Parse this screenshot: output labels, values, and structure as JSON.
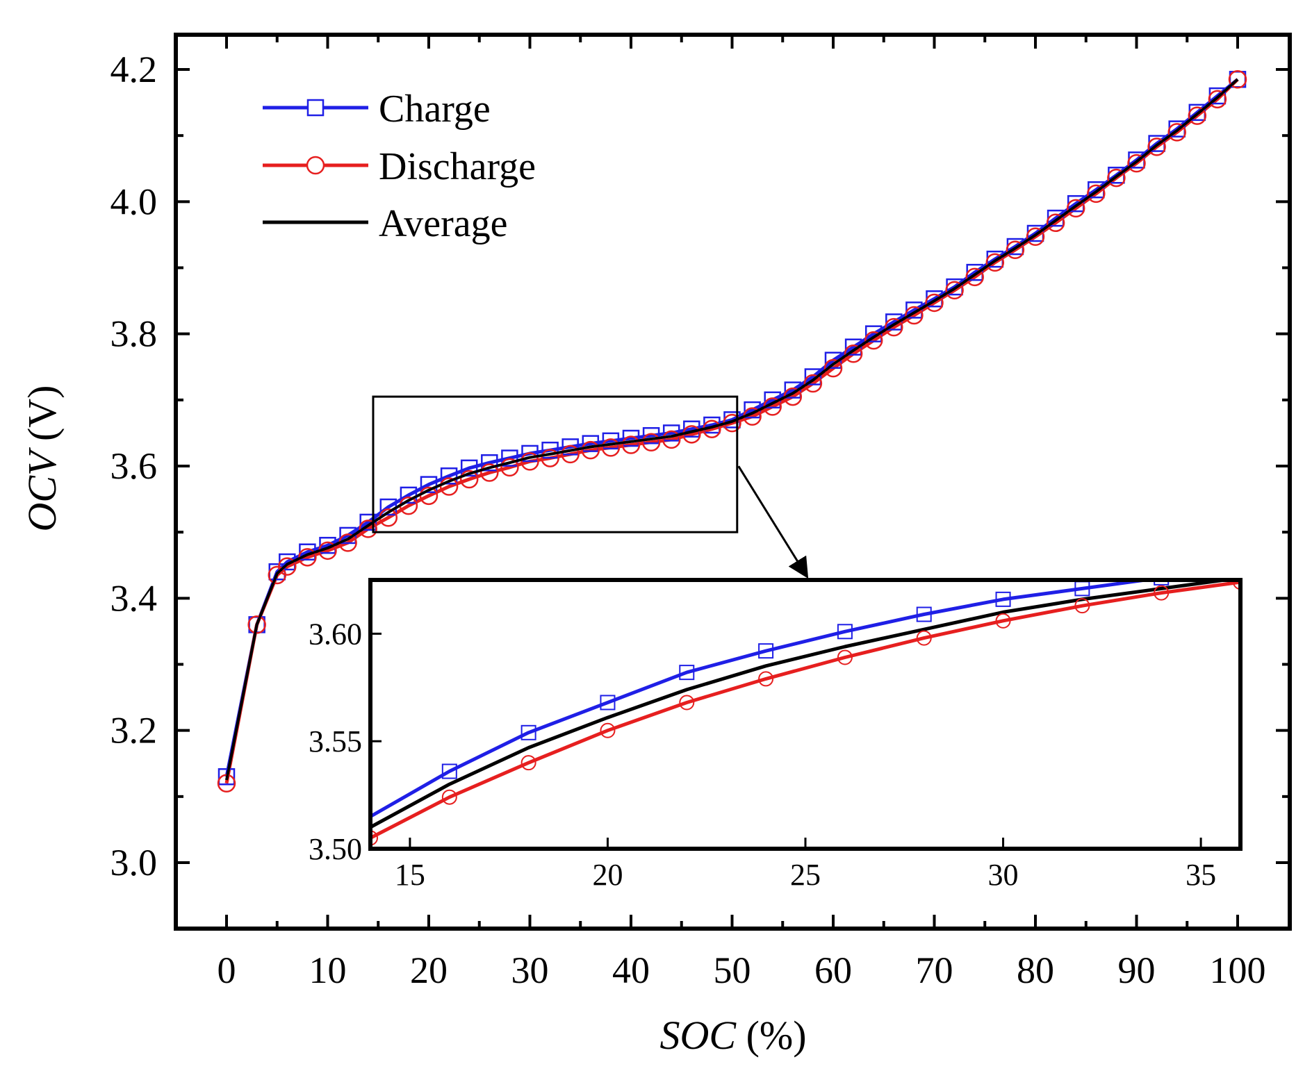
{
  "chart_data": {
    "type": "line",
    "xlabel": {
      "italic": "SOC",
      "rest": " (%)"
    },
    "ylabel": {
      "italic": "OCV",
      "rest": " (V)"
    },
    "xlim": [
      -5,
      105
    ],
    "ylim": [
      2.9,
      4.25
    ],
    "xticks": [
      0,
      10,
      20,
      30,
      40,
      50,
      60,
      70,
      80,
      90,
      100
    ],
    "yticks": [
      3.0,
      3.2,
      3.4,
      3.6,
      3.8,
      4.0,
      4.2
    ],
    "ytick_labels": [
      "3.0",
      "3.2",
      "3.4",
      "3.6",
      "3.8",
      "4.0",
      "4.2"
    ],
    "colors": {
      "charge": "#1f1fe6",
      "discharge": "#e61f1f",
      "average": "#000000"
    },
    "legend": {
      "position": "top-left",
      "entries": [
        {
          "label": "Charge",
          "marker": "square",
          "series": "charge"
        },
        {
          "label": "Discharge",
          "marker": "circle",
          "series": "discharge"
        },
        {
          "label": "Average",
          "marker": "none",
          "series": "average"
        }
      ]
    },
    "series": [
      {
        "name": "Charge",
        "key": "charge",
        "x": [
          0,
          3,
          5,
          6,
          8,
          10,
          12,
          14,
          16,
          18,
          20,
          22,
          24,
          26,
          28,
          30,
          32,
          34,
          36,
          38,
          40,
          42,
          44,
          46,
          48,
          50,
          52,
          54,
          56,
          58,
          60,
          62,
          64,
          66,
          68,
          70,
          72,
          74,
          76,
          78,
          80,
          82,
          84,
          86,
          88,
          90,
          92,
          94,
          96,
          98,
          100
        ],
        "y": [
          3.13,
          3.36,
          3.44,
          3.455,
          3.47,
          3.48,
          3.495,
          3.515,
          3.538,
          3.556,
          3.572,
          3.585,
          3.597,
          3.605,
          3.612,
          3.619,
          3.624,
          3.629,
          3.634,
          3.638,
          3.642,
          3.646,
          3.65,
          3.656,
          3.662,
          3.67,
          3.685,
          3.7,
          3.715,
          3.735,
          3.76,
          3.78,
          3.8,
          3.818,
          3.836,
          3.853,
          3.871,
          3.893,
          3.913,
          3.932,
          3.952,
          3.975,
          3.997,
          4.018,
          4.04,
          4.063,
          4.088,
          4.11,
          4.135,
          4.16,
          4.185
        ]
      },
      {
        "name": "Discharge",
        "key": "discharge",
        "x": [
          0,
          3,
          5,
          6,
          8,
          10,
          12,
          14,
          16,
          18,
          20,
          22,
          24,
          26,
          28,
          30,
          32,
          34,
          36,
          38,
          40,
          42,
          44,
          46,
          48,
          50,
          52,
          54,
          56,
          58,
          60,
          62,
          64,
          66,
          68,
          70,
          72,
          74,
          76,
          78,
          80,
          82,
          84,
          86,
          88,
          90,
          92,
          94,
          96,
          98,
          100
        ],
        "y": [
          3.12,
          3.36,
          3.435,
          3.448,
          3.462,
          3.472,
          3.484,
          3.505,
          3.522,
          3.54,
          3.555,
          3.569,
          3.58,
          3.59,
          3.598,
          3.607,
          3.612,
          3.618,
          3.624,
          3.628,
          3.632,
          3.636,
          3.64,
          3.648,
          3.656,
          3.665,
          3.675,
          3.69,
          3.705,
          3.725,
          3.748,
          3.77,
          3.79,
          3.81,
          3.828,
          3.847,
          3.866,
          3.886,
          3.908,
          3.927,
          3.947,
          3.968,
          3.99,
          4.012,
          4.036,
          4.058,
          4.083,
          4.105,
          4.13,
          4.155,
          4.185
        ]
      },
      {
        "name": "Average",
        "key": "average",
        "x": [
          0,
          3,
          5,
          6,
          8,
          10,
          12,
          14,
          16,
          18,
          20,
          22,
          24,
          26,
          28,
          30,
          32,
          34,
          36,
          38,
          40,
          42,
          44,
          46,
          48,
          50,
          52,
          54,
          56,
          58,
          60,
          62,
          64,
          66,
          68,
          70,
          72,
          74,
          76,
          78,
          80,
          82,
          84,
          86,
          88,
          90,
          92,
          94,
          96,
          98,
          100
        ],
        "y": [
          3.125,
          3.36,
          3.4375,
          3.4515,
          3.466,
          3.476,
          3.4895,
          3.51,
          3.53,
          3.548,
          3.5635,
          3.577,
          3.5885,
          3.5975,
          3.605,
          3.613,
          3.618,
          3.6235,
          3.629,
          3.633,
          3.637,
          3.641,
          3.645,
          3.652,
          3.659,
          3.6675,
          3.68,
          3.695,
          3.71,
          3.73,
          3.754,
          3.775,
          3.795,
          3.814,
          3.832,
          3.85,
          3.8685,
          3.8895,
          3.9105,
          3.9295,
          3.9495,
          3.9715,
          3.9935,
          4.015,
          4.038,
          4.0605,
          4.0855,
          4.1075,
          4.1325,
          4.1575,
          4.185
        ]
      }
    ],
    "zoom_box": {
      "xlim": [
        14.5,
        50.5
      ],
      "ylim": [
        3.5,
        3.705
      ]
    },
    "inset": {
      "xlim": [
        14,
        36
      ],
      "ylim": [
        3.5,
        3.625
      ],
      "xticks": [
        15,
        20,
        25,
        30,
        35
      ],
      "yticks": [
        3.5,
        3.55,
        3.6
      ],
      "ytick_labels": [
        "3.50",
        "3.55",
        "3.60"
      ],
      "series": [
        {
          "key": "charge",
          "x": [
            14,
            16,
            18,
            20,
            22,
            24,
            26,
            28,
            30,
            32,
            34,
            36
          ],
          "y": [
            3.515,
            3.536,
            3.554,
            3.568,
            3.582,
            3.592,
            3.601,
            3.609,
            3.616,
            3.621,
            3.626,
            3.63
          ]
        },
        {
          "key": "average",
          "x": [
            14,
            16,
            18,
            20,
            22,
            24,
            26,
            28,
            30,
            32,
            34,
            36
          ],
          "y": [
            3.51,
            3.53,
            3.547,
            3.561,
            3.574,
            3.585,
            3.594,
            3.602,
            3.61,
            3.616,
            3.621,
            3.626
          ]
        },
        {
          "key": "discharge",
          "x": [
            14,
            16,
            18,
            20,
            22,
            24,
            26,
            28,
            30,
            32,
            34,
            36
          ],
          "y": [
            3.505,
            3.524,
            3.54,
            3.555,
            3.568,
            3.579,
            3.589,
            3.598,
            3.606,
            3.613,
            3.619,
            3.624
          ]
        }
      ],
      "markers": {
        "charge_x": [
          16,
          18,
          20,
          22,
          24,
          26,
          28,
          30,
          32,
          34,
          36
        ],
        "discharge_x": [
          14,
          16,
          18,
          20,
          22,
          24,
          26,
          28,
          30,
          32,
          34,
          36
        ]
      }
    }
  }
}
